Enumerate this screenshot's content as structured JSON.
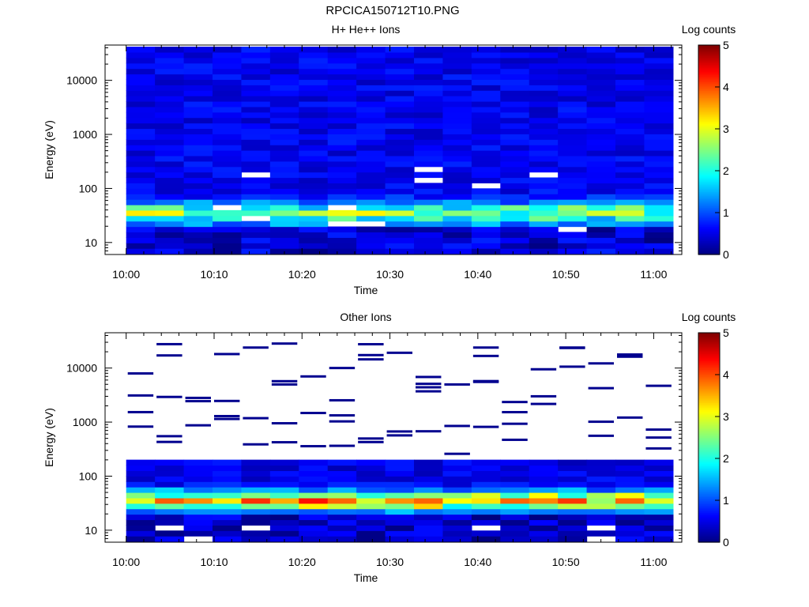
{
  "figure_title": "RPCICA150712T10.PNG",
  "chart_data": [
    {
      "type": "heatmap",
      "title": "H+ He++ Ions",
      "xlabel": "Time",
      "ylabel": "Energy (eV)",
      "xticks": [
        "10:00",
        "10:10",
        "10:20",
        "10:30",
        "10:40",
        "10:50",
        "11:00"
      ],
      "yticks": [
        "10",
        "100",
        "1000",
        "10000"
      ],
      "yscale": "log",
      "ylim": [
        6,
        45000
      ],
      "colorbar": {
        "label": "Log counts",
        "range": [
          0,
          5
        ],
        "ticks": [
          "0",
          "1",
          "2",
          "3",
          "4",
          "5"
        ]
      },
      "grid": false,
      "time_bins": 19,
      "energy_bins": 38,
      "profile": {
        "peak_log_energy": 1.55,
        "peak_level": 2.4,
        "width": 0.2,
        "background_level": 0.55,
        "blank_fraction": 0.04
      }
    },
    {
      "type": "heatmap",
      "title": "Other Ions",
      "xlabel": "Time",
      "ylabel": "Energy (eV)",
      "xticks": [
        "10:00",
        "10:10",
        "10:20",
        "10:30",
        "10:40",
        "10:50",
        "11:00"
      ],
      "yticks": [
        "10",
        "100",
        "1000",
        "10000"
      ],
      "yscale": "log",
      "ylim": [
        6,
        45000
      ],
      "colorbar": {
        "label": "Log counts",
        "range": [
          0,
          5
        ],
        "ticks": [
          "0",
          "1",
          "2",
          "3",
          "4",
          "5"
        ]
      },
      "grid": false,
      "time_bins": 19,
      "energy_bins": 38,
      "profile": {
        "peak_log_energy": 1.55,
        "peak_level": 3.8,
        "width": 0.17,
        "background_level": 0.25,
        "high_energy_cutoff_log": 2.35,
        "sparse_lines_per_column": 3
      }
    }
  ],
  "colors": {
    "text": "#000000",
    "missing": "#ffffff"
  }
}
